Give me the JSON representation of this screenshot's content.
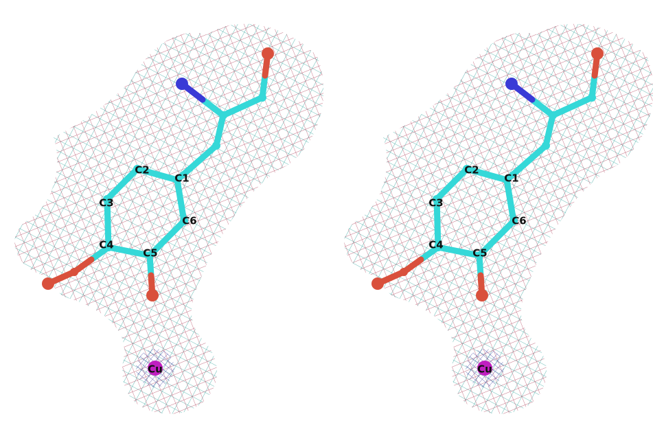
{
  "views": [
    {
      "atom_labels": [
        "C1",
        "C2",
        "C3",
        "C4",
        "C5",
        "C6",
        "Cu"
      ]
    },
    {
      "atom_labels": [
        "C1",
        "C2",
        "C3",
        "C4",
        "C5",
        "C6",
        "Cu"
      ]
    }
  ]
}
